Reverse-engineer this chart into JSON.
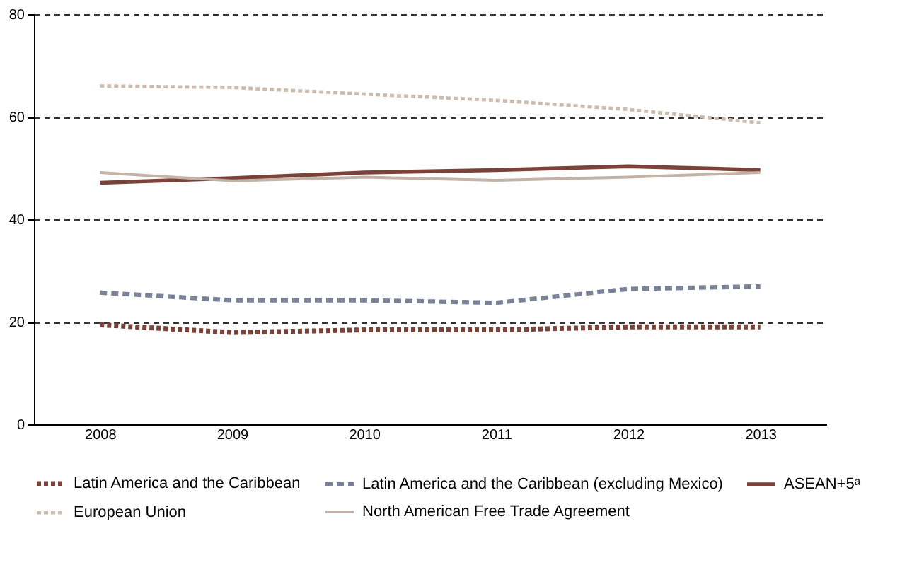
{
  "chart_data": {
    "type": "line",
    "categories": [
      "2008",
      "2009",
      "2010",
      "2011",
      "2012",
      "2013"
    ],
    "ylim": [
      0,
      80
    ],
    "yticks": [
      0,
      20,
      40,
      60,
      80
    ],
    "grid": "y",
    "legend": "bottom",
    "marker": "none",
    "series": [
      {
        "name": "Latin America and the Caribbean",
        "color": "#7a4238",
        "line_style": "dotted",
        "values": [
          19.4,
          17.9,
          18.4,
          18.4,
          19.0,
          19.0
        ]
      },
      {
        "name": "Latin America and the Caribbean (excluding Mexico)",
        "color": "#7b8196",
        "line_style": "dashed",
        "values": [
          25.7,
          24.2,
          24.2,
          23.7,
          26.4,
          26.9
        ]
      },
      {
        "name": "ASEAN+5ᵃ",
        "color": "#7a4238",
        "line_style": "solid",
        "values": [
          47.1,
          48.0,
          49.1,
          49.6,
          50.3,
          49.6
        ]
      },
      {
        "name": "European Union",
        "color": "#cbbcae",
        "line_style": "dotted",
        "values": [
          66.0,
          65.7,
          64.4,
          63.2,
          61.4,
          58.8
        ]
      },
      {
        "name": "North American Free Trade Agreement",
        "color": "#c2b3a6",
        "line_style": "solid",
        "values": [
          49.1,
          47.5,
          48.2,
          47.6,
          48.2,
          49.1
        ]
      }
    ]
  }
}
